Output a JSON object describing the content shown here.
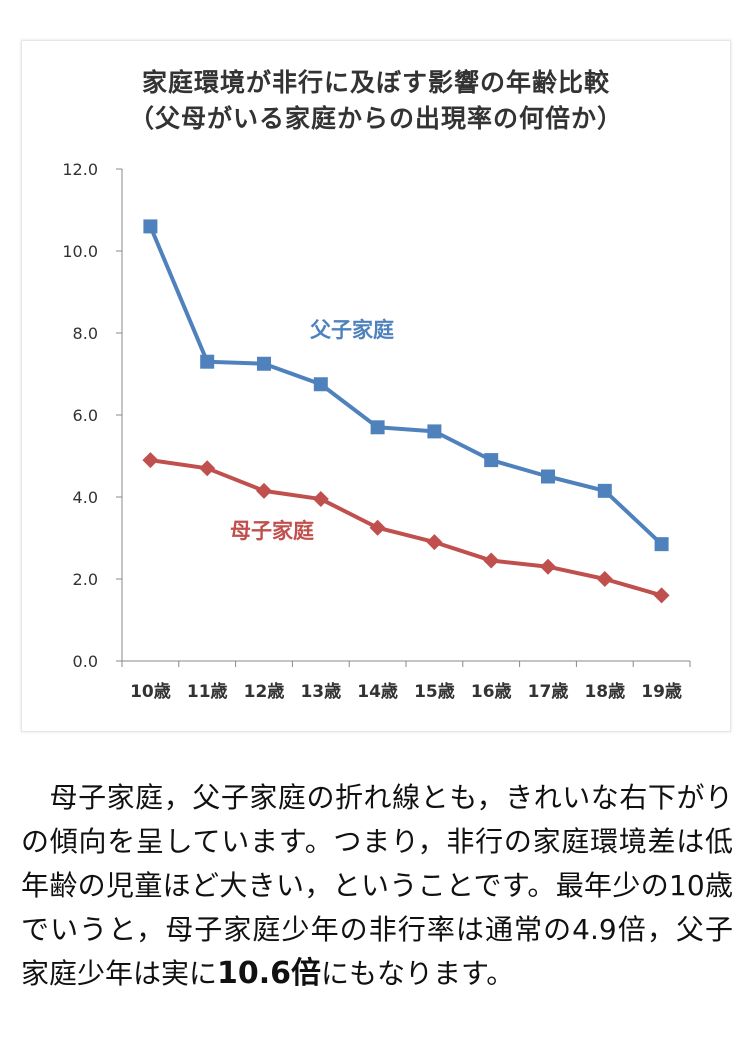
{
  "chart_data": {
    "type": "line",
    "title": "家庭環境が非行に及ぼす影響の年齢比較",
    "subtitle": "（父母がいる家庭からの出現率の何倍か）",
    "categories": [
      "10歳",
      "11歳",
      "12歳",
      "13歳",
      "14歳",
      "15歳",
      "16歳",
      "17歳",
      "18歳",
      "19歳"
    ],
    "yticks": [
      "0.0",
      "2.0",
      "4.0",
      "6.0",
      "8.0",
      "10.0",
      "12.0"
    ],
    "ylim": [
      0,
      12
    ],
    "series": [
      {
        "name": "父子家庭",
        "color": "#4f81bd",
        "marker": "square",
        "values": [
          10.6,
          7.3,
          7.25,
          6.75,
          5.7,
          5.6,
          4.9,
          4.5,
          4.15,
          2.85
        ]
      },
      {
        "name": "母子家庭",
        "color": "#c0504d",
        "marker": "diamond",
        "values": [
          4.9,
          4.7,
          4.15,
          3.95,
          3.25,
          2.9,
          2.45,
          2.3,
          2.0,
          1.6
        ]
      }
    ]
  },
  "article": {
    "line1": "　母子家庭，父子家庭の折れ線とも，きれいな右下がりの傾向を呈しています。つまり，非行の家庭環境差は低年齢の児童ほど大きい，ということです。最年少の10歳でいうと，母子家庭少年の非行率は通常の4.9倍，父子家庭少年は実に",
    "emphasis": "10.6倍",
    "line2": "にもなります。"
  }
}
